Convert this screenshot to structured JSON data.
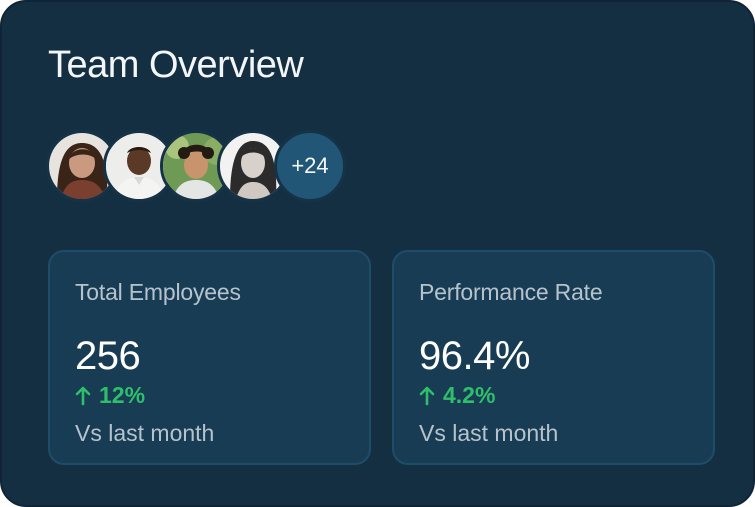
{
  "card": {
    "title": "Team Overview"
  },
  "team": {
    "avatars": [
      {
        "name": "team-member-1"
      },
      {
        "name": "team-member-2"
      },
      {
        "name": "team-member-3"
      },
      {
        "name": "team-member-4"
      }
    ],
    "more_count_label": "+24"
  },
  "stats": [
    {
      "label": "Total Employees",
      "value": "256",
      "change": "12%",
      "change_icon": "arrow-up-icon",
      "note": "Vs last month"
    },
    {
      "label": "Performance Rate",
      "value": "96.4%",
      "change": "4.2%",
      "change_icon": "arrow-up-icon",
      "note": "Vs last month"
    }
  ],
  "colors": {
    "card_bg": "#152f42",
    "stat_bg": "#173c54",
    "positive": "#2fbf6b",
    "more_badge": "#215676"
  }
}
